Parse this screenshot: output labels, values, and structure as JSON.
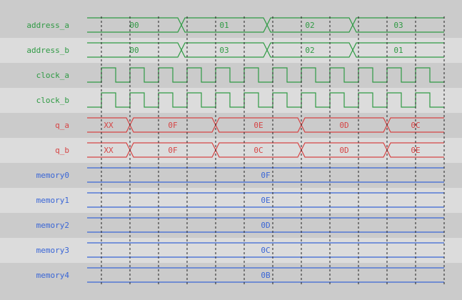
{
  "colors": {
    "green": "#2f9a44",
    "red": "#d64545",
    "blue": "#3a66d6",
    "row_dark": "#cbcbcb",
    "row_light": "#dcdcdc",
    "grid": "#222222"
  },
  "signals": [
    {
      "name": "address_a",
      "type": "bus",
      "color": "green",
      "values": [
        "00",
        "01",
        "02",
        "03"
      ],
      "changes_at_cycle": [
        3.3,
        6.3,
        9.3
      ]
    },
    {
      "name": "address_b",
      "type": "bus",
      "color": "green",
      "values": [
        "00",
        "03",
        "02",
        "01"
      ],
      "changes_at_cycle": [
        3.3,
        6.3,
        9.3
      ]
    },
    {
      "name": "clock_a",
      "type": "clock",
      "color": "green"
    },
    {
      "name": "clock_b",
      "type": "clock",
      "color": "green"
    },
    {
      "name": "q_a",
      "type": "bus",
      "color": "red",
      "values": [
        "XX",
        "0F",
        "0E",
        "0D",
        "0C"
      ],
      "changes_at_cycle": [
        1.5,
        4.5,
        7.5,
        10.5
      ]
    },
    {
      "name": "q_b",
      "type": "bus",
      "color": "red",
      "values": [
        "XX",
        "0F",
        "0C",
        "0D",
        "0E"
      ],
      "changes_at_cycle": [
        1.5,
        4.5,
        7.5,
        10.5
      ]
    },
    {
      "name": "memory0",
      "type": "bus",
      "color": "blue",
      "values": [
        "0F"
      ],
      "changes_at_cycle": []
    },
    {
      "name": "memory1",
      "type": "bus",
      "color": "blue",
      "values": [
        "0E"
      ],
      "changes_at_cycle": []
    },
    {
      "name": "memory2",
      "type": "bus",
      "color": "blue",
      "values": [
        "0D"
      ],
      "changes_at_cycle": []
    },
    {
      "name": "memory3",
      "type": "bus",
      "color": "blue",
      "values": [
        "0C"
      ],
      "changes_at_cycle": []
    },
    {
      "name": "memory4",
      "type": "bus",
      "color": "blue",
      "values": [
        "0B"
      ],
      "changes_at_cycle": []
    }
  ],
  "cycles": 12
}
